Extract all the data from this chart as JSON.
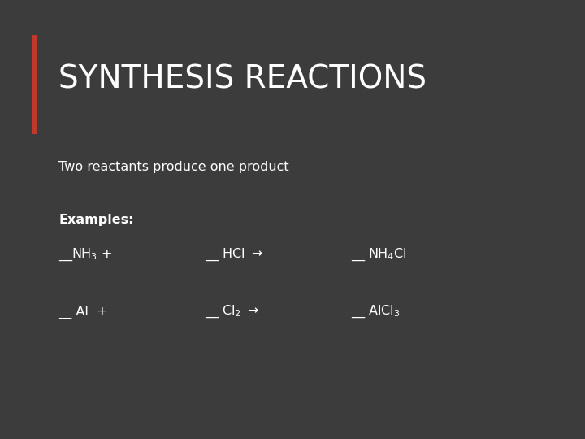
{
  "background_color": "#3c3c3c",
  "accent_bar_color": "#c0392b",
  "title": "SYNTHESIS REACTIONS",
  "title_color": "#ffffff",
  "title_fontsize": 28,
  "subtitle": "Two reactants produce one product",
  "subtitle_color": "#ffffff",
  "subtitle_fontsize": 11.5,
  "examples_label": "Examples:",
  "examples_fontsize": 11.5,
  "text_color": "#ffffff",
  "body_fontsize": 11.5
}
